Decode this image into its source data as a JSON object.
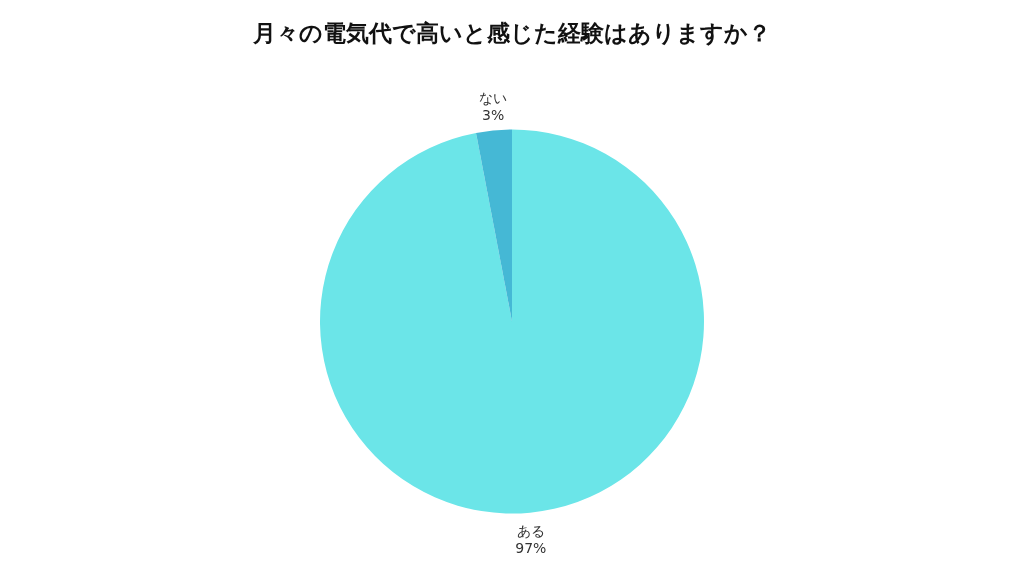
{
  "chart_data": {
    "type": "pie",
    "title": "月々の電気代で高いと感じた経験はありますか？",
    "categories": [
      "ある",
      "ない"
    ],
    "values": [
      97,
      3
    ],
    "colors": [
      "#6be5e8",
      "#45b8d5"
    ],
    "value_labels": [
      "97%",
      "3%"
    ]
  }
}
